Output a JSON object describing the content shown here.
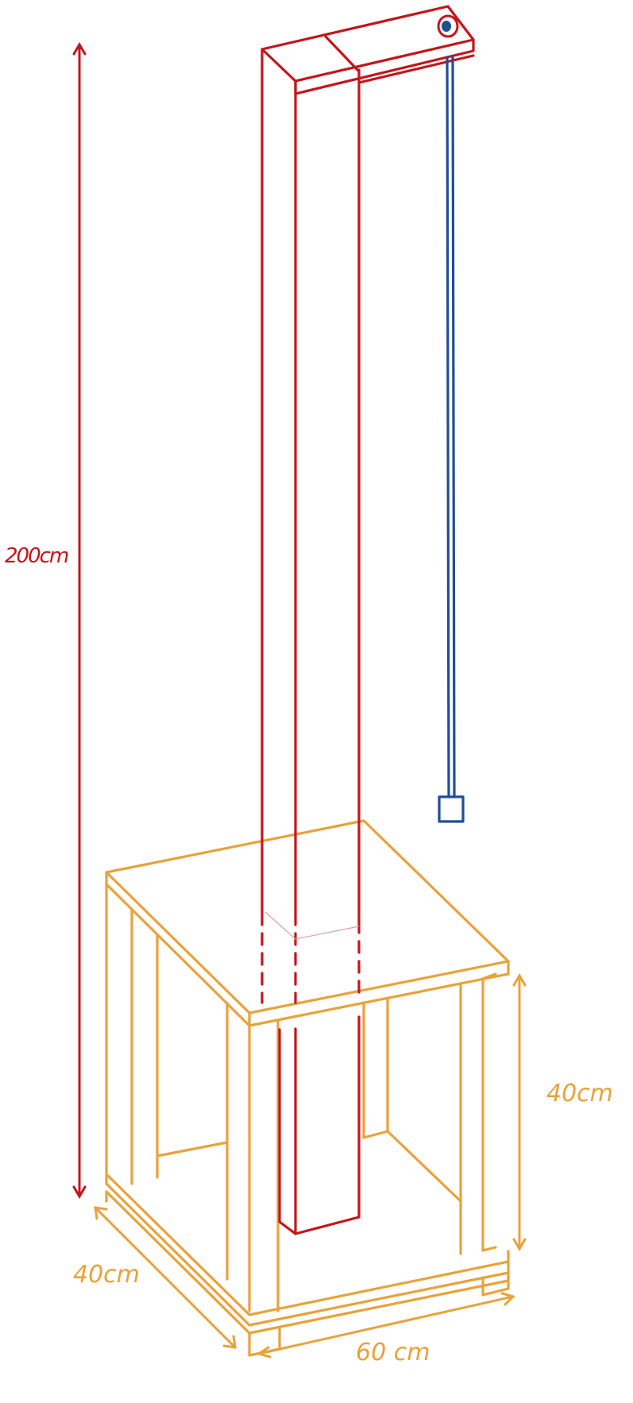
{
  "labels": {
    "height": "200cm",
    "box_height": "40cm",
    "depth": "40cm",
    "width": "60 cm"
  },
  "colors": {
    "post": "#c4151c",
    "cord": "#1f4e94",
    "base": "#e9a23b"
  },
  "icons": {
    "pulley": "circle-eyelet-icon",
    "weight": "square-weight-icon"
  }
}
